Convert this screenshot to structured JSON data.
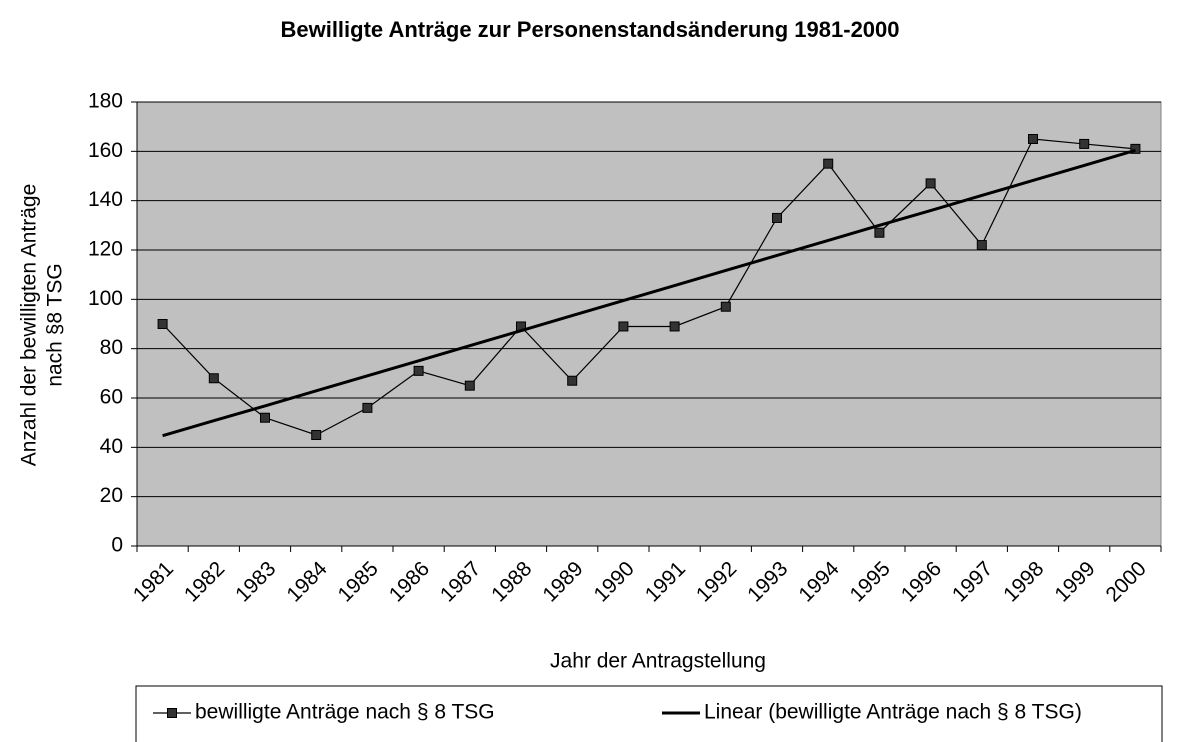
{
  "chart_data": {
    "type": "line",
    "title": "Bewilligte Anträge zur Personenstandsänderung 1981-2000",
    "x_label": "Jahr der Antragstellung",
    "y_label": [
      "Anzahl der bewilligten Anträge",
      "nach §8 TSG"
    ],
    "categories": [
      "1981",
      "1982",
      "1983",
      "1984",
      "1985",
      "1986",
      "1987",
      "1988",
      "1989",
      "1990",
      "1991",
      "1992",
      "1993",
      "1994",
      "1995",
      "1996",
      "1997",
      "1998",
      "1999",
      "2000"
    ],
    "series": [
      {
        "name": "bewilligte Anträge nach § 8 TSG",
        "color": "#000000",
        "marker": "square",
        "values": [
          90,
          68,
          52,
          45,
          56,
          71,
          65,
          89,
          67,
          89,
          89,
          97,
          133,
          155,
          127,
          147,
          122,
          165,
          163,
          161
        ]
      },
      {
        "name": "Linear (bewilligte Anträge nach § 8 TSG)",
        "color": "#000000",
        "values": [
          44.7,
          50.8,
          56.8,
          62.9,
          69.0,
          75.1,
          81.2,
          87.3,
          93.4,
          99.5,
          105.6,
          111.7,
          117.8,
          123.9,
          130.0,
          136.0,
          142.1,
          148.2,
          154.3,
          160.4
        ]
      }
    ],
    "ylim": [
      0,
      180
    ],
    "yticks": [
      0,
      20,
      40,
      60,
      80,
      100,
      120,
      140,
      160,
      180
    ],
    "grid": true,
    "legend": "bottom",
    "plot_background": "#c0c0c0"
  }
}
